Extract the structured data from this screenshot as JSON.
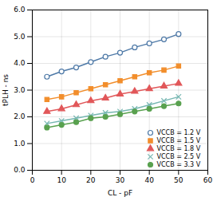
{
  "chart_data": {
    "type": "line",
    "xlabel": "CL - pF",
    "ylabel": "tPLH - ns",
    "xlim": [
      0,
      60
    ],
    "ylim": [
      0,
      6
    ],
    "xticks": [
      0,
      10,
      20,
      30,
      40,
      50,
      60
    ],
    "yticks": [
      0,
      1,
      2,
      3,
      4,
      5,
      6
    ],
    "grid": true,
    "legend": "lower right",
    "x": [
      5,
      10,
      15,
      20,
      25,
      30,
      35,
      40,
      45,
      50
    ],
    "series": [
      {
        "name": "VCCB = 1.2 V",
        "marker": "circle-open",
        "values": [
          3.5,
          3.7,
          3.85,
          4.05,
          4.25,
          4.4,
          4.6,
          4.75,
          4.9,
          5.1
        ]
      },
      {
        "name": "VCCB = 1.5 V",
        "marker": "square",
        "values": [
          2.65,
          2.75,
          2.9,
          3.05,
          3.2,
          3.35,
          3.5,
          3.65,
          3.75,
          3.9
        ]
      },
      {
        "name": "VCCB = 1.8 V",
        "marker": "triangle",
        "values": [
          2.2,
          2.3,
          2.45,
          2.6,
          2.7,
          2.85,
          2.95,
          3.05,
          3.15,
          3.25
        ]
      },
      {
        "name": "VCCB = 2.5 V",
        "marker": "times",
        "values": [
          1.75,
          1.85,
          1.95,
          2.05,
          2.15,
          2.2,
          2.3,
          2.45,
          2.6,
          2.75
        ]
      },
      {
        "name": "VCCB = 3.3 V",
        "marker": "circle",
        "values": [
          1.6,
          1.7,
          1.8,
          1.95,
          2.0,
          2.1,
          2.2,
          2.3,
          2.4,
          2.5
        ]
      }
    ]
  }
}
